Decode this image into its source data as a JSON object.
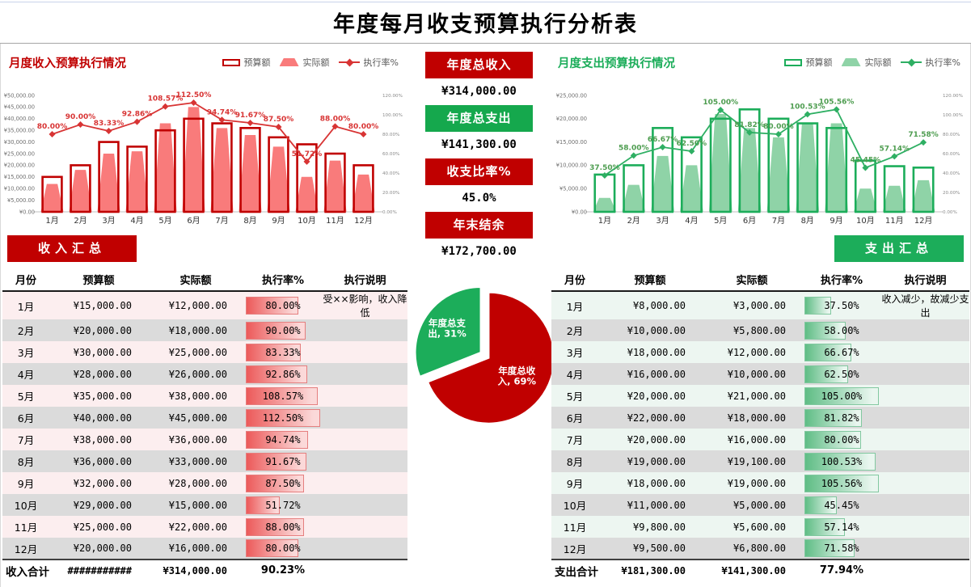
{
  "page": {
    "title": "年度每月收支预算执行分析表"
  },
  "colors": {
    "income-accent": "#C00000",
    "income-fill": "#F97B7B",
    "income-line": "#D83434",
    "income-label": "#D83434",
    "expense-accent": "#1CAD5A",
    "expense-fill": "#8FD3A7",
    "expense-line": "#2EAF63",
    "expense-label": "#4E9D50",
    "row-grey": "#DBDBDB",
    "row-pink": "#FCEEEF",
    "row-green": "#EDF6F1"
  },
  "income_section": {
    "chart_title": "月度收入预算执行情况",
    "legend": [
      "预算额",
      "实际额",
      "执行率%"
    ],
    "button_label": "收入汇总",
    "table": {
      "headers": [
        "月份",
        "预算额",
        "实际额",
        "执行率%",
        "执行说明"
      ],
      "rows": [
        {
          "month": "1月",
          "budget": "¥15,000.00",
          "actual": "¥12,000.00",
          "rate": 80,
          "rate_label": "80.00%",
          "note": "受××影响，收入降低"
        },
        {
          "month": "2月",
          "budget": "¥20,000.00",
          "actual": "¥18,000.00",
          "rate": 90,
          "rate_label": "90.00%",
          "note": ""
        },
        {
          "month": "3月",
          "budget": "¥30,000.00",
          "actual": "¥25,000.00",
          "rate": 83.33,
          "rate_label": "83.33%",
          "note": ""
        },
        {
          "month": "4月",
          "budget": "¥28,000.00",
          "actual": "¥26,000.00",
          "rate": 92.86,
          "rate_label": "92.86%",
          "note": ""
        },
        {
          "month": "5月",
          "budget": "¥35,000.00",
          "actual": "¥38,000.00",
          "rate": 108.57,
          "rate_label": "108.57%",
          "note": ""
        },
        {
          "month": "6月",
          "budget": "¥40,000.00",
          "actual": "¥45,000.00",
          "rate": 112.5,
          "rate_label": "112.50%",
          "note": ""
        },
        {
          "month": "7月",
          "budget": "¥38,000.00",
          "actual": "¥36,000.00",
          "rate": 94.74,
          "rate_label": "94.74%",
          "note": ""
        },
        {
          "month": "8月",
          "budget": "¥36,000.00",
          "actual": "¥33,000.00",
          "rate": 91.67,
          "rate_label": "91.67%",
          "note": ""
        },
        {
          "month": "9月",
          "budget": "¥32,000.00",
          "actual": "¥28,000.00",
          "rate": 87.5,
          "rate_label": "87.50%",
          "note": ""
        },
        {
          "month": "10月",
          "budget": "¥29,000.00",
          "actual": "¥15,000.00",
          "rate": 51.72,
          "rate_label": "51.72%",
          "note": ""
        },
        {
          "month": "11月",
          "budget": "¥25,000.00",
          "actual": "¥22,000.00",
          "rate": 88,
          "rate_label": "88.00%",
          "note": ""
        },
        {
          "month": "12月",
          "budget": "¥20,000.00",
          "actual": "¥16,000.00",
          "rate": 80,
          "rate_label": "80.00%",
          "note": ""
        }
      ],
      "total": {
        "label": "收入合计",
        "budget": "###########",
        "actual": "¥314,000.00",
        "rate_label": "90.23%"
      }
    }
  },
  "expense_section": {
    "chart_title": "月度支出预算执行情况",
    "legend": [
      "预算额",
      "实际额",
      "执行率%"
    ],
    "button_label": "支出汇总",
    "table": {
      "headers": [
        "月份",
        "预算额",
        "实际额",
        "执行率%",
        "执行说明"
      ],
      "rows": [
        {
          "month": "1月",
          "budget": "¥8,000.00",
          "actual": "¥3,000.00",
          "rate": 37.5,
          "rate_label": "37.50%",
          "note": "收入减少，故减少支出"
        },
        {
          "month": "2月",
          "budget": "¥10,000.00",
          "actual": "¥5,800.00",
          "rate": 58,
          "rate_label": "58.00%",
          "note": ""
        },
        {
          "month": "3月",
          "budget": "¥18,000.00",
          "actual": "¥12,000.00",
          "rate": 66.67,
          "rate_label": "66.67%",
          "note": ""
        },
        {
          "month": "4月",
          "budget": "¥16,000.00",
          "actual": "¥10,000.00",
          "rate": 62.5,
          "rate_label": "62.50%",
          "note": ""
        },
        {
          "month": "5月",
          "budget": "¥20,000.00",
          "actual": "¥21,000.00",
          "rate": 105,
          "rate_label": "105.00%",
          "note": ""
        },
        {
          "month": "6月",
          "budget": "¥22,000.00",
          "actual": "¥18,000.00",
          "rate": 81.82,
          "rate_label": "81.82%",
          "note": ""
        },
        {
          "month": "7月",
          "budget": "¥20,000.00",
          "actual": "¥16,000.00",
          "rate": 80,
          "rate_label": "80.00%",
          "note": ""
        },
        {
          "month": "8月",
          "budget": "¥19,000.00",
          "actual": "¥19,100.00",
          "rate": 100.53,
          "rate_label": "100.53%",
          "note": ""
        },
        {
          "month": "9月",
          "budget": "¥18,000.00",
          "actual": "¥19,000.00",
          "rate": 105.56,
          "rate_label": "105.56%",
          "note": ""
        },
        {
          "month": "10月",
          "budget": "¥11,000.00",
          "actual": "¥5,000.00",
          "rate": 45.45,
          "rate_label": "45.45%",
          "note": ""
        },
        {
          "month": "11月",
          "budget": "¥9,800.00",
          "actual": "¥5,600.00",
          "rate": 57.14,
          "rate_label": "57.14%",
          "note": ""
        },
        {
          "month": "12月",
          "budget": "¥9,500.00",
          "actual": "¥6,800.00",
          "rate": 71.58,
          "rate_label": "71.58%",
          "note": ""
        }
      ],
      "total": {
        "label": "支出合计",
        "budget": "¥181,300.00",
        "actual": "¥141,300.00",
        "rate_label": "77.94%"
      }
    }
  },
  "summary_cards": [
    {
      "label": "年度总收入",
      "value": "¥314,000.00",
      "color": "#C00000"
    },
    {
      "label": "年度总支出",
      "value": "¥141,300.00",
      "color": "#15A84D"
    },
    {
      "label": "收支比率%",
      "value": "45.0%",
      "color": "#C00000"
    },
    {
      "label": "年末结余",
      "value": "¥172,700.00",
      "color": "#C00000"
    }
  ],
  "chart_data": [
    {
      "id": "income_combo",
      "type": "bar",
      "subtype": "combo bar-outline + trapezoid + line",
      "title": "月度收入预算执行情况",
      "categories": [
        "1月",
        "2月",
        "3月",
        "4月",
        "5月",
        "6月",
        "7月",
        "8月",
        "9月",
        "10月",
        "11月",
        "12月"
      ],
      "series": [
        {
          "name": "预算额",
          "role": "budget-outline",
          "values": [
            15000,
            20000,
            30000,
            28000,
            35000,
            40000,
            38000,
            36000,
            32000,
            29000,
            25000,
            20000
          ]
        },
        {
          "name": "实际额",
          "role": "actual-trapezoid",
          "values": [
            12000,
            18000,
            25000,
            26000,
            38000,
            45000,
            36000,
            33000,
            28000,
            15000,
            22000,
            16000
          ]
        },
        {
          "name": "执行率%",
          "role": "rate-line",
          "axis": "secondary",
          "values": [
            80,
            90,
            83.33,
            92.86,
            108.57,
            112.5,
            94.74,
            91.67,
            87.5,
            51.72,
            88,
            80
          ],
          "labels": [
            "80.00%",
            "90.00%",
            "83.33%",
            "92.86%",
            "108.57%",
            "112.50%",
            "94.74%",
            "91.67%",
            "87.50%",
            "51.72%",
            "88.00%",
            "80.00%"
          ]
        }
      ],
      "y_axis": {
        "min": 0,
        "max": 50000,
        "step": 5000,
        "labels": [
          "¥0.00",
          "¥5,000.00",
          "¥10,000.00",
          "¥15,000.00",
          "¥20,000.00",
          "¥25,000.00",
          "¥30,000.00",
          "¥35,000.00",
          "¥40,000.00",
          "¥45,000.00",
          "¥50,000.00"
        ]
      },
      "y2_axis": {
        "min": 0,
        "max": 120,
        "step": 20,
        "labels": [
          "0.00%",
          "20.00%",
          "40.00%",
          "60.00%",
          "80.00%",
          "100.00%",
          "120.00%"
        ]
      },
      "grid": false,
      "legend_position": "top-right"
    },
    {
      "id": "expense_combo",
      "type": "bar",
      "subtype": "combo bar-outline + trapezoid + line",
      "title": "月度支出预算执行情况",
      "categories": [
        "1月",
        "2月",
        "3月",
        "4月",
        "5月",
        "6月",
        "7月",
        "8月",
        "9月",
        "10月",
        "11月",
        "12月"
      ],
      "series": [
        {
          "name": "预算额",
          "role": "budget-outline",
          "values": [
            8000,
            10000,
            18000,
            16000,
            20000,
            22000,
            20000,
            19000,
            18000,
            11000,
            9800,
            9500
          ]
        },
        {
          "name": "实际额",
          "role": "actual-trapezoid",
          "values": [
            3000,
            5800,
            12000,
            10000,
            21000,
            18000,
            16000,
            19100,
            19000,
            5000,
            5600,
            6800
          ]
        },
        {
          "name": "执行率%",
          "role": "rate-line",
          "axis": "secondary",
          "values": [
            37.5,
            58,
            66.67,
            62.5,
            105,
            81.82,
            80,
            100.53,
            105.56,
            45.45,
            57.14,
            71.58
          ],
          "labels": [
            "37.50%",
            "58.00%",
            "66.67%",
            "62.50%",
            "105.00%",
            "81.82%",
            "80.00%",
            "100.53%",
            "105.56%",
            "45.45%",
            "57.14%",
            "71.58%"
          ]
        }
      ],
      "y_axis": {
        "min": 0,
        "max": 25000,
        "step": 5000,
        "labels": [
          "¥0.00",
          "¥5,000.00",
          "¥10,000.00",
          "¥15,000.00",
          "¥20,000.00",
          "¥25,000.00"
        ]
      },
      "y2_axis": {
        "min": 0,
        "max": 120,
        "step": 20,
        "labels": [
          "0.00%",
          "20.00%",
          "40.00%",
          "60.00%",
          "80.00%",
          "100.00%",
          "120.00%"
        ]
      },
      "grid": false,
      "legend_position": "top-right"
    },
    {
      "id": "balance_pie",
      "type": "pie",
      "slices": [
        {
          "label": "年度总收入",
          "value": 69,
          "display_lines": [
            "年度总收",
            "入, 69%"
          ],
          "color": "#C00000",
          "explode": 3
        },
        {
          "label": "年度总支出",
          "value": 31,
          "display_lines": [
            "年度总支",
            "出, 31%"
          ],
          "color": "#1CAD5A",
          "explode": 9
        }
      ]
    }
  ]
}
